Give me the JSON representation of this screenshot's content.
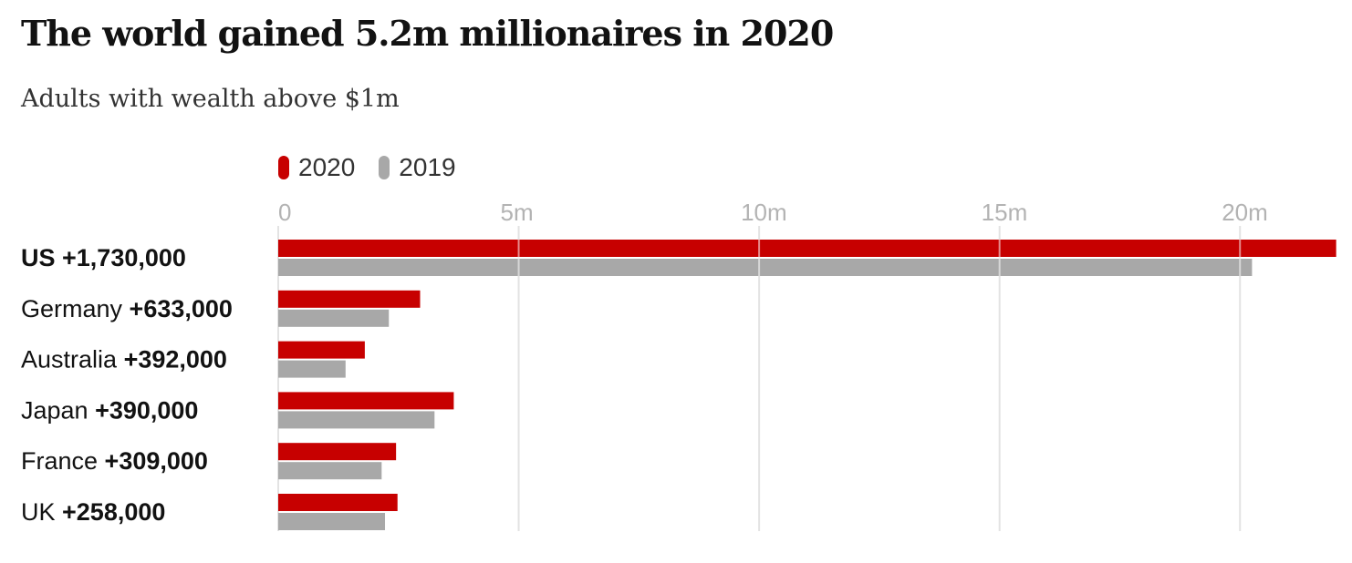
{
  "title": "The world gained 5.2m millionaires in 2020",
  "subtitle": "Adults with wealth above $1m",
  "legend": [
    {
      "label": "2020",
      "color": "#c70000"
    },
    {
      "label": "2019",
      "color": "#a8a8a8"
    }
  ],
  "chart_data": {
    "type": "bar",
    "orientation": "horizontal",
    "categories": [
      "US",
      "Germany",
      "Australia",
      "Japan",
      "France",
      "UK"
    ],
    "category_annotations": [
      "+1,730,000",
      "+633,000",
      "+392,000",
      "+390,000",
      "+309,000",
      "+258,000"
    ],
    "highlight_category": "US",
    "series": [
      {
        "name": "2020",
        "color": "#c70000",
        "values": [
          22.0,
          2.95,
          1.8,
          3.65,
          2.45,
          2.48
        ]
      },
      {
        "name": "2019",
        "color": "#a8a8a8",
        "values": [
          20.25,
          2.3,
          1.4,
          3.25,
          2.15,
          2.22
        ]
      }
    ],
    "xlim": [
      0,
      21.95
    ],
    "ticks": [
      0,
      5,
      10,
      15,
      20
    ],
    "tick_labels": [
      "0",
      "5m",
      "10m",
      "15m",
      "20m"
    ],
    "grid": true,
    "legend_position": "top-left"
  }
}
